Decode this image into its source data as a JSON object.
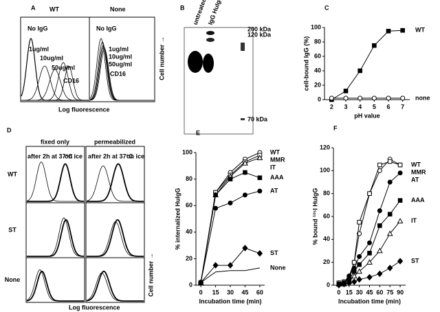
{
  "panel_a": {
    "label": "A",
    "groups": [
      "WT",
      "None"
    ],
    "wt_annotations": [
      "No IgG",
      "1ug/ml",
      "10ug/ml",
      "50ug/ml",
      "CD16"
    ],
    "none_annotations": [
      "No IgG",
      "1ug/ml",
      "10ug/ml",
      "50ug/ml",
      "CD16"
    ],
    "x_label": "Log fluorescence",
    "y_label": "Cell number →"
  },
  "panel_b": {
    "label": "B",
    "lanes": [
      "untreated HuIgG",
      "IgG HuIgG"
    ],
    "markers": [
      "200 kDa",
      "120 kDa",
      "70 kDa"
    ]
  },
  "panel_d": {
    "label": "D",
    "columns": [
      "fixed only",
      "permeabilized"
    ],
    "rows": [
      "WT",
      "ST",
      "None"
    ],
    "annotations": [
      "after 2h at 37°C",
      "on ice",
      "after 2h at 37°C",
      "on ice"
    ],
    "x_label": "Log fluorescence",
    "y_label": "Cell number →"
  },
  "chart_data": [
    {
      "type": "line",
      "label": "C",
      "x_label": "pH value",
      "y_label": "cell-bound IgG (%)",
      "x": [
        2,
        3,
        4,
        5,
        6,
        7
      ],
      "xlim": [
        1.5,
        7.5
      ],
      "xticks": [
        2,
        3,
        4,
        5,
        6,
        7
      ],
      "ylim": [
        0,
        100
      ],
      "yticks": [
        0,
        20,
        40,
        60,
        80,
        100
      ],
      "series": [
        {
          "name": "WT",
          "color": "#000000",
          "marker": "filled-square",
          "values": [
            0,
            12,
            40,
            75,
            95,
            96
          ]
        },
        {
          "name": "none",
          "color": "#000000",
          "marker": "open-circle",
          "values": [
            2,
            2,
            2,
            2,
            2,
            2
          ]
        }
      ]
    },
    {
      "type": "line",
      "label": "E",
      "x_label": "Incubation time (min)",
      "y_label": "% internalized HuIgG",
      "x": [
        0,
        15,
        30,
        45,
        60
      ],
      "xlim": [
        -5,
        65
      ],
      "xticks": [
        0,
        15,
        30,
        45,
        60
      ],
      "ylim": [
        0,
        100
      ],
      "yticks": [
        0,
        20,
        40,
        60,
        80,
        100
      ],
      "series": [
        {
          "name": "WT",
          "color": "#000000",
          "marker": "open-circle",
          "values": [
            2,
            70,
            85,
            95,
            100
          ]
        },
        {
          "name": "MMR",
          "color": "#000000",
          "marker": "open-square",
          "values": [
            2,
            70,
            83,
            93,
            98
          ]
        },
        {
          "name": "IT",
          "color": "#000000",
          "marker": "open-triangle",
          "values": [
            2,
            68,
            82,
            92,
            96
          ]
        },
        {
          "name": "AAA",
          "color": "#000000",
          "marker": "filled-square",
          "values": [
            2,
            68,
            80,
            85,
            81
          ]
        },
        {
          "name": "AT",
          "color": "#000000",
          "marker": "filled-circle",
          "values": [
            2,
            58,
            62,
            68,
            71
          ]
        },
        {
          "name": "ST",
          "color": "#000000",
          "marker": "filled-diamond",
          "values": [
            2,
            15,
            15,
            28,
            24
          ]
        },
        {
          "name": "None",
          "color": "#000000",
          "marker": "none",
          "values": [
            2,
            10,
            11,
            11,
            13
          ]
        }
      ]
    },
    {
      "type": "line",
      "label": "F",
      "x_label": "Incubation time (min)",
      "y_label": "% bound ¹²⁵I HuIgG",
      "x": [
        0,
        7.5,
        15,
        22.5,
        30,
        45,
        60,
        75,
        90
      ],
      "xlim": [
        -8,
        98
      ],
      "xticks": [
        0,
        15,
        30,
        45,
        60,
        75,
        90
      ],
      "ylim": [
        0,
        120
      ],
      "yticks": [
        0,
        20,
        40,
        60,
        80,
        100,
        120
      ],
      "series": [
        {
          "name": "WT",
          "color": "#000000",
          "marker": "open-circle",
          "values": [
            2,
            3,
            8,
            20,
            45,
            80,
            100,
            110,
            105
          ]
        },
        {
          "name": "MMR",
          "color": "#000000",
          "marker": "open-square",
          "values": [
            2,
            3,
            5,
            20,
            55,
            80,
            105,
            108,
            105
          ]
        },
        {
          "name": "AT",
          "color": "#000000",
          "marker": "filled-circle",
          "values": [
            1,
            2,
            8,
            15,
            25,
            37,
            65,
            90,
            98
          ]
        },
        {
          "name": "AAA",
          "color": "#000000",
          "marker": "filled-square",
          "values": [
            1,
            2,
            5,
            12,
            18,
            28,
            52,
            62,
            74
          ]
        },
        {
          "name": "IT",
          "color": "#000000",
          "marker": "open-triangle",
          "values": [
            1,
            1,
            3,
            8,
            12,
            20,
            30,
            45,
            56
          ]
        },
        {
          "name": "ST",
          "color": "#000000",
          "marker": "filled-diamond",
          "values": [
            0,
            1,
            2,
            3,
            5,
            7,
            10,
            15,
            21
          ]
        }
      ]
    }
  ]
}
